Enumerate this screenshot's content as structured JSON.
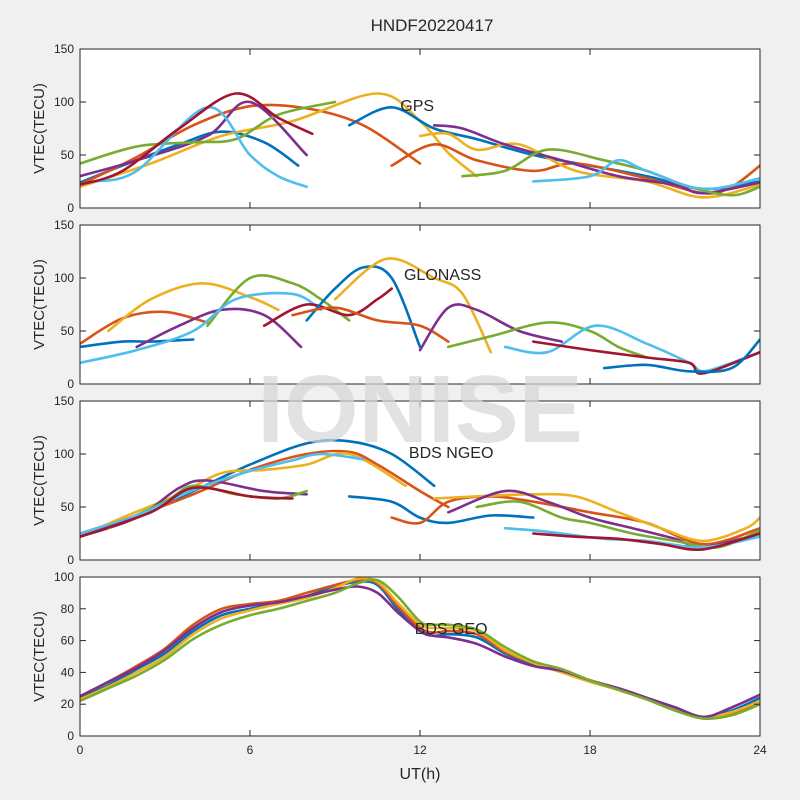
{
  "figure": {
    "title": "HNDF20220417",
    "watermark": "IONISE",
    "xlabel": "UT(h)"
  },
  "colors": {
    "palette": [
      "#0072BD",
      "#D95319",
      "#EDB120",
      "#7E2F8E",
      "#77AC30",
      "#4DBEEE",
      "#A2142F"
    ],
    "axes_bg": "#ffffff",
    "figure_bg": "#f0f0f0",
    "axis_color": "#262626",
    "watermark": "#d6d6d6"
  },
  "chart_data": [
    {
      "type": "line",
      "annotation": "GPS",
      "annotation_pos": [
        11.9,
        97
      ],
      "ylabel": "VTEC(TECU)",
      "xlim": [
        0,
        24
      ],
      "ylim": [
        0,
        150
      ],
      "xticks": [
        0,
        6,
        12,
        18,
        24
      ],
      "yticks": [
        0,
        50,
        100,
        150
      ],
      "show_xticklabels": false,
      "grid": false,
      "series": [
        {
          "x": [
            0,
            1.5,
            3.5,
            5,
            6.5,
            7.7
          ],
          "y": [
            24,
            40,
            60,
            72,
            62,
            40
          ]
        },
        {
          "x": [
            0,
            2,
            4,
            6,
            8,
            10,
            12
          ],
          "y": [
            22,
            48,
            78,
            96,
            94,
            78,
            42
          ]
        },
        {
          "x": [
            0,
            2.5,
            5,
            7.5,
            10.5,
            12,
            13,
            14
          ],
          "y": [
            20,
            42,
            68,
            82,
            108,
            82,
            52,
            30
          ]
        },
        {
          "x": [
            0,
            2,
            4.5,
            6,
            8
          ],
          "y": [
            30,
            45,
            68,
            100,
            50
          ]
        },
        {
          "x": [
            0,
            2,
            4,
            5.5,
            7,
            9
          ],
          "y": [
            42,
            58,
            62,
            65,
            88,
            100
          ]
        },
        {
          "x": [
            0.5,
            2,
            4.5,
            6,
            7,
            8
          ],
          "y": [
            25,
            35,
            95,
            50,
            30,
            20
          ]
        },
        {
          "x": [
            0,
            1.5,
            3.5,
            5.5,
            7,
            8.2
          ],
          "y": [
            22,
            35,
            75,
            108,
            85,
            70
          ]
        },
        {
          "x": [
            9.5,
            11,
            12.5,
            14,
            16,
            18,
            20,
            22,
            24
          ],
          "y": [
            78,
            95,
            75,
            65,
            50,
            40,
            30,
            18,
            25
          ]
        },
        {
          "x": [
            11,
            12.5,
            14,
            16,
            17.5,
            20,
            22,
            23,
            24
          ],
          "y": [
            40,
            60,
            45,
            35,
            42,
            28,
            14,
            20,
            40
          ]
        },
        {
          "x": [
            12,
            13,
            14,
            15.5,
            17.5,
            20,
            22,
            24
          ],
          "y": [
            68,
            70,
            55,
            60,
            35,
            25,
            10,
            22
          ]
        },
        {
          "x": [
            12.5,
            13.5,
            15,
            17,
            19,
            21,
            22,
            24
          ],
          "y": [
            78,
            75,
            60,
            45,
            30,
            22,
            14,
            24
          ]
        },
        {
          "x": [
            13.5,
            15,
            16.5,
            18.5,
            20,
            21.5,
            23,
            24
          ],
          "y": [
            30,
            35,
            55,
            45,
            35,
            20,
            12,
            20
          ]
        },
        {
          "x": [
            16,
            18,
            19,
            20,
            22,
            24
          ],
          "y": [
            25,
            30,
            45,
            35,
            18,
            28
          ]
        }
      ]
    },
    {
      "type": "line",
      "annotation": "GLONASS",
      "annotation_pos": [
        12.8,
        104
      ],
      "ylabel": "VTEC(TECU)",
      "xlim": [
        0,
        24
      ],
      "ylim": [
        0,
        150
      ],
      "xticks": [
        0,
        6,
        12,
        18,
        24
      ],
      "yticks": [
        0,
        50,
        100,
        150
      ],
      "show_xticklabels": false,
      "grid": false,
      "series": [
        {
          "x": [
            0,
            1.5,
            2.5,
            4
          ],
          "y": [
            35,
            40,
            40,
            42
          ]
        },
        {
          "x": [
            0,
            1.5,
            3,
            4.5
          ],
          "y": [
            38,
            62,
            68,
            58
          ]
        },
        {
          "x": [
            1,
            2.5,
            4.3,
            6,
            7
          ],
          "y": [
            50,
            80,
            95,
            82,
            70
          ]
        },
        {
          "x": [
            2,
            3.5,
            5,
            6.5,
            7.8
          ],
          "y": [
            35,
            55,
            70,
            65,
            35
          ]
        },
        {
          "x": [
            4.5,
            6,
            7.5,
            8.5,
            9.5
          ],
          "y": [
            55,
            100,
            95,
            80,
            60
          ]
        },
        {
          "x": [
            0,
            2,
            4,
            5.5,
            7.5,
            8.5
          ],
          "y": [
            20,
            32,
            50,
            80,
            85,
            70
          ]
        },
        {
          "x": [
            6.5,
            8,
            9.5,
            10.5,
            11
          ],
          "y": [
            55,
            75,
            65,
            80,
            90
          ]
        },
        {
          "x": [
            8,
            9,
            10,
            11,
            12
          ],
          "y": [
            60,
            90,
            110,
            100,
            35
          ]
        },
        {
          "x": [
            7.5,
            9,
            10.5,
            12,
            13
          ],
          "y": [
            65,
            72,
            60,
            55,
            40
          ]
        },
        {
          "x": [
            9,
            10.8,
            12.5,
            13.5,
            14.5
          ],
          "y": [
            80,
            118,
            100,
            85,
            30
          ]
        },
        {
          "x": [
            12,
            13,
            14,
            15.5,
            17
          ],
          "y": [
            32,
            72,
            70,
            50,
            40
          ]
        },
        {
          "x": [
            13,
            14.5,
            16.5,
            18,
            19,
            20
          ],
          "y": [
            35,
            45,
            58,
            50,
            35,
            25
          ]
        },
        {
          "x": [
            15,
            16.5,
            18.2,
            20,
            21.5,
            22,
            23,
            24
          ],
          "y": [
            35,
            30,
            55,
            38,
            20,
            12,
            20,
            30
          ]
        },
        {
          "x": [
            16,
            18,
            20,
            21.5,
            22,
            24
          ],
          "y": [
            40,
            32,
            25,
            20,
            10,
            30
          ]
        },
        {
          "x": [
            18.5,
            20,
            21.5,
            23,
            24
          ],
          "y": [
            15,
            18,
            12,
            15,
            42
          ]
        }
      ]
    },
    {
      "type": "line",
      "annotation": "BDS NGEO",
      "annotation_pos": [
        13.1,
        102
      ],
      "ylabel": "VTEC(TECU)",
      "xlim": [
        0,
        24
      ],
      "ylim": [
        0,
        150
      ],
      "xticks": [
        0,
        6,
        12,
        18,
        24
      ],
      "yticks": [
        0,
        50,
        100,
        150
      ],
      "show_xticklabels": false,
      "grid": false,
      "series": [
        {
          "x": [
            0,
            2,
            4,
            6,
            8,
            9.5,
            11,
            12.5
          ],
          "y": [
            22,
            40,
            65,
            90,
            110,
            112,
            100,
            70
          ]
        },
        {
          "x": [
            0,
            2,
            4,
            6,
            8,
            9.5,
            10.5,
            12,
            13
          ],
          "y": [
            25,
            42,
            62,
            85,
            100,
            102,
            90,
            65,
            50
          ]
        },
        {
          "x": [
            0,
            1.5,
            3.5,
            5,
            6.5,
            8,
            9.5,
            11.5
          ],
          "y": [
            22,
            40,
            62,
            82,
            85,
            90,
            100,
            70
          ]
        },
        {
          "x": [
            0,
            2,
            3.5,
            4.5,
            6.5,
            8
          ],
          "y": [
            22,
            40,
            68,
            75,
            65,
            62
          ]
        },
        {
          "x": [
            1,
            3,
            4,
            5.5,
            7,
            8
          ],
          "y": [
            30,
            55,
            70,
            62,
            58,
            65
          ]
        },
        {
          "x": [
            0,
            2,
            4,
            6,
            7.5,
            8.5,
            10
          ],
          "y": [
            25,
            42,
            66,
            84,
            94,
            100,
            95
          ]
        },
        {
          "x": [
            0,
            2.5,
            4,
            6,
            7.5
          ],
          "y": [
            22,
            45,
            68,
            60,
            58
          ]
        },
        {
          "x": [
            9.5,
            11,
            12,
            13,
            14.5,
            16
          ],
          "y": [
            60,
            55,
            40,
            35,
            42,
            40
          ]
        },
        {
          "x": [
            11,
            12,
            13,
            14.5,
            16,
            18,
            20,
            22,
            24
          ],
          "y": [
            40,
            35,
            55,
            60,
            55,
            45,
            35,
            15,
            30
          ]
        },
        {
          "x": [
            12.5,
            14,
            16,
            17.5,
            19,
            20.5,
            22,
            23.5,
            24
          ],
          "y": [
            58,
            60,
            62,
            60,
            45,
            30,
            18,
            30,
            40
          ]
        },
        {
          "x": [
            13,
            15,
            16.5,
            18,
            19.5,
            21,
            22,
            24
          ],
          "y": [
            45,
            65,
            55,
            40,
            30,
            20,
            12,
            25
          ]
        },
        {
          "x": [
            14,
            15.5,
            17,
            18,
            19.5,
            21,
            22.5,
            24
          ],
          "y": [
            50,
            55,
            40,
            35,
            25,
            18,
            12,
            28
          ]
        },
        {
          "x": [
            15,
            16,
            17,
            18.5,
            20,
            22,
            24
          ],
          "y": [
            30,
            28,
            25,
            20,
            18,
            12,
            22
          ]
        },
        {
          "x": [
            16,
            17.5,
            19,
            20.5,
            22,
            24
          ],
          "y": [
            25,
            22,
            20,
            15,
            10,
            25
          ]
        }
      ]
    },
    {
      "type": "line",
      "annotation": "BDS GEO",
      "annotation_pos": [
        13.1,
        68
      ],
      "ylabel": "VTEC(TECU)",
      "xlim": [
        0,
        24
      ],
      "ylim": [
        0,
        100
      ],
      "xticks": [
        0,
        6,
        12,
        18,
        24
      ],
      "yticks": [
        0,
        20,
        40,
        60,
        80,
        100
      ],
      "show_xticklabels": true,
      "grid": false,
      "series": [
        {
          "x": [
            0,
            1,
            2,
            3,
            4,
            5,
            6,
            7,
            8,
            9,
            9.8,
            10.5,
            11.2,
            12,
            12.5,
            13,
            14,
            15,
            16,
            17,
            18,
            19,
            20,
            21,
            22,
            23,
            24
          ],
          "y": [
            24,
            32,
            42,
            52,
            66,
            76,
            80,
            84,
            88,
            94,
            97,
            95,
            80,
            66,
            63,
            64,
            62,
            52,
            45,
            41,
            35,
            30,
            24,
            18,
            12,
            16,
            24
          ]
        },
        {
          "x": [
            0,
            1,
            2,
            3,
            4,
            5,
            6,
            7,
            8,
            9,
            9.8,
            10.5,
            11.2,
            12,
            12.5,
            13,
            14,
            15,
            16,
            17,
            18,
            19,
            20,
            21,
            22,
            23,
            24
          ],
          "y": [
            25,
            34,
            44,
            55,
            70,
            80,
            83,
            85,
            90,
            95,
            98,
            96,
            82,
            68,
            65,
            66,
            64,
            53,
            46,
            42,
            35,
            30,
            24,
            17,
            11,
            14,
            22
          ]
        },
        {
          "x": [
            0,
            1,
            2,
            3,
            4,
            5,
            6,
            7,
            8,
            9,
            9.8,
            10.5,
            11.2,
            12,
            12.5,
            13,
            14,
            15,
            16,
            17,
            18,
            19,
            20,
            21,
            22,
            23,
            24
          ],
          "y": [
            23,
            31,
            40,
            50,
            64,
            74,
            79,
            83,
            87,
            93,
            99,
            97,
            84,
            70,
            68,
            68,
            66,
            54,
            46,
            40,
            34,
            29,
            23,
            17,
            12,
            15,
            22
          ]
        },
        {
          "x": [
            0,
            1,
            2,
            3,
            4,
            5,
            6,
            7,
            8,
            9,
            9.8,
            10.5,
            11.2,
            12,
            12.5,
            13,
            14,
            15,
            16,
            17,
            18,
            19,
            20,
            21,
            22,
            23,
            24
          ],
          "y": [
            25,
            34,
            43,
            54,
            68,
            78,
            82,
            84,
            88,
            92,
            94,
            90,
            78,
            66,
            63,
            62,
            58,
            50,
            44,
            41,
            35,
            30,
            24,
            18,
            12,
            18,
            26
          ]
        },
        {
          "x": [
            0,
            1,
            2,
            3,
            4,
            5,
            6,
            7,
            8,
            9,
            9.8,
            10.5,
            11.2,
            12,
            12.5,
            13,
            14,
            15,
            16,
            17,
            18,
            19,
            20,
            21,
            22,
            23,
            24
          ],
          "y": [
            22,
            30,
            38,
            48,
            61,
            70,
            76,
            80,
            85,
            90,
            96,
            98,
            88,
            72,
            70,
            70,
            67,
            56,
            47,
            42,
            35,
            29,
            23,
            16,
            11,
            13,
            20
          ]
        }
      ]
    }
  ]
}
